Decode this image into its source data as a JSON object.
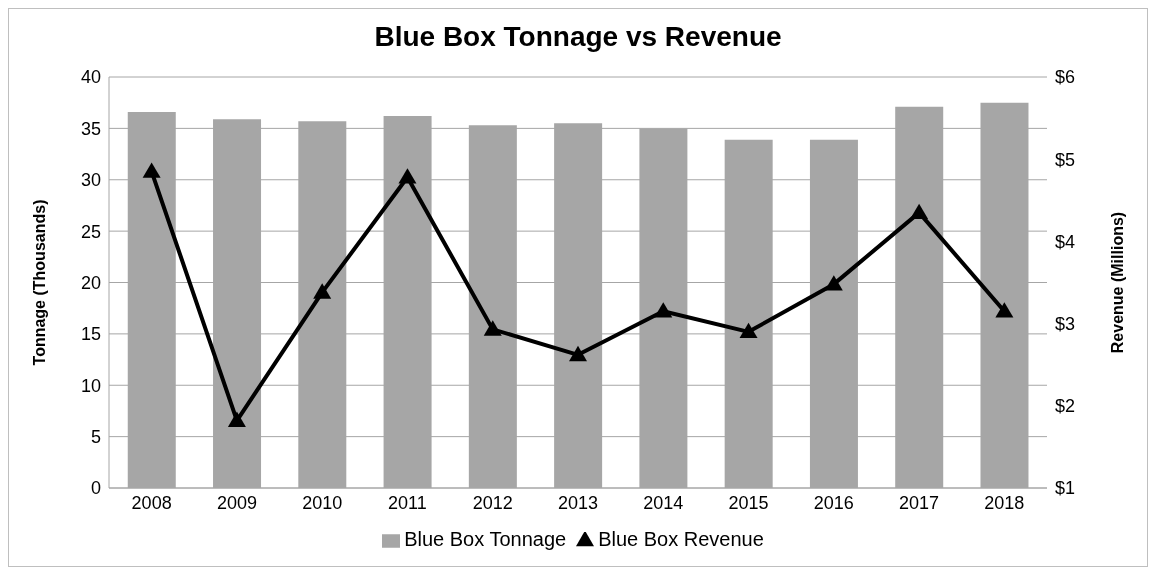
{
  "chart_data": {
    "type": "bar",
    "title": "Blue Box Tonnage vs Revenue",
    "ylabel": "Tonnage (Thousands)",
    "y2label": "Revenue (Millions)",
    "categories": [
      "2008",
      "2009",
      "2010",
      "2011",
      "2012",
      "2013",
      "2014",
      "2015",
      "2016",
      "2017",
      "2018"
    ],
    "series": [
      {
        "name": "Blue Box Tonnage",
        "color": "#a6a6a6",
        "values": [
          36.6,
          35.9,
          35.7,
          36.2,
          35.3,
          35.5,
          35.0,
          33.9,
          33.9,
          37.1,
          37.5
        ]
      },
      {
        "name": "Blue Box Revenue",
        "type": "line",
        "axis": "y2",
        "color": "#000000",
        "marker": "triangle",
        "values": [
          4.85,
          1.82,
          3.38,
          4.78,
          2.93,
          2.62,
          3.15,
          2.9,
          3.48,
          4.35,
          3.15
        ]
      }
    ],
    "ylim": [
      0,
      40
    ],
    "yticks": [
      0,
      5,
      10,
      15,
      20,
      25,
      30,
      35,
      40
    ],
    "y2lim": [
      1,
      6
    ],
    "y2ticks": [
      {
        "value": 1,
        "label": "$1"
      },
      {
        "value": 2,
        "label": "$2"
      },
      {
        "value": 3,
        "label": "$3"
      },
      {
        "value": 4,
        "label": "$4"
      },
      {
        "value": 5,
        "label": "$5"
      },
      {
        "value": 6,
        "label": "$6"
      }
    ],
    "grid": "y",
    "legend": "bottom"
  }
}
